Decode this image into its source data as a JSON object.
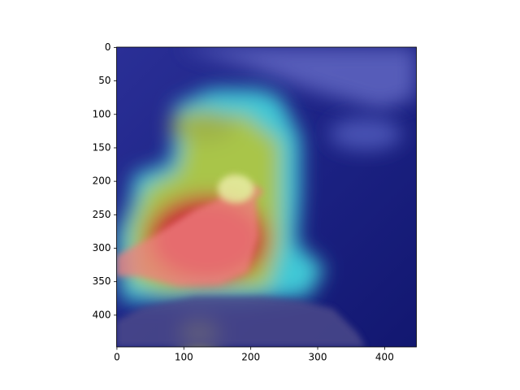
{
  "chart_data": {
    "type": "image",
    "xlim": [
      -0.5,
      447.5
    ],
    "ylim": [
      447.5,
      -0.5
    ],
    "xticks": [
      0,
      100,
      200,
      300,
      400
    ],
    "yticks": [
      0,
      50,
      100,
      150,
      200,
      250,
      300,
      350,
      400
    ]
  }
}
